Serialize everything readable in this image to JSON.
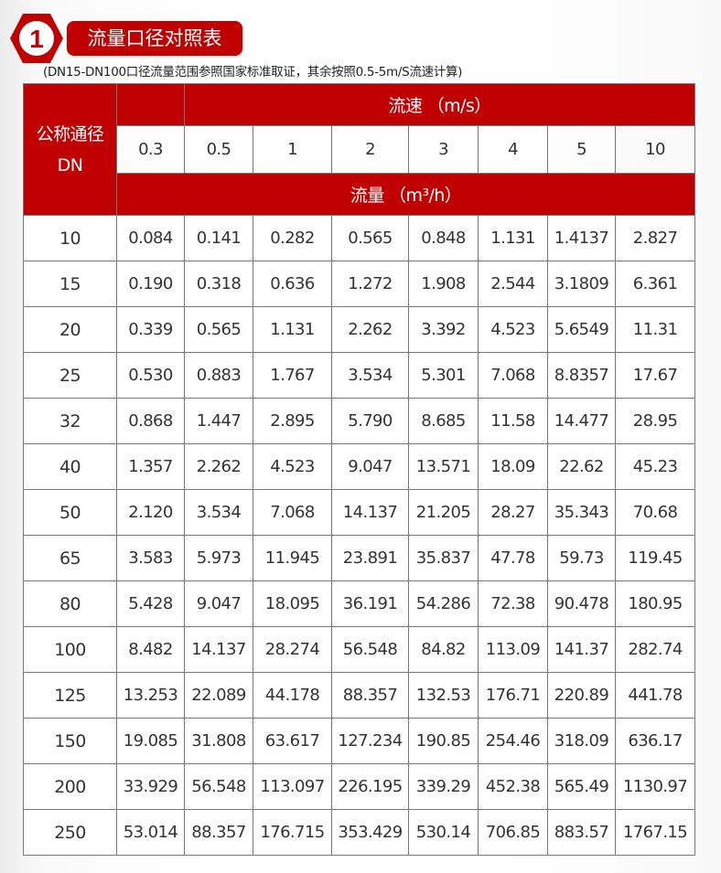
{
  "badge": {
    "number": "1"
  },
  "title": "流量口径对照表",
  "note": "(DN15-DN100口径流量范围参照国家标准取证，其余按照0.5-5m/S流速计算)",
  "colors": {
    "accent": "#c00000"
  },
  "table": {
    "dn_header_line1": "公称通径",
    "dn_header_line2": "DN",
    "velocity_header": "流速 （m/s）",
    "flow_header": "流量 （m³/h）",
    "velocities": [
      "0.3",
      "0.5",
      "1",
      "2",
      "3",
      "4",
      "5",
      "10"
    ],
    "rows": [
      {
        "dn": "10",
        "values": [
          "0.084",
          "0.141",
          "0.282",
          "0.565",
          "0.848",
          "1.131",
          "1.4137",
          "2.827"
        ]
      },
      {
        "dn": "15",
        "values": [
          "0.190",
          "0.318",
          "0.636",
          "1.272",
          "1.908",
          "2.544",
          "3.1809",
          "6.361"
        ]
      },
      {
        "dn": "20",
        "values": [
          "0.339",
          "0.565",
          "1.131",
          "2.262",
          "3.392",
          "4.523",
          "5.6549",
          "11.31"
        ]
      },
      {
        "dn": "25",
        "values": [
          "0.530",
          "0.883",
          "1.767",
          "3.534",
          "5.301",
          "7.068",
          "8.8357",
          "17.67"
        ]
      },
      {
        "dn": "32",
        "values": [
          "0.868",
          "1.447",
          "2.895",
          "5.790",
          "8.685",
          "11.58",
          "14.477",
          "28.95"
        ]
      },
      {
        "dn": "40",
        "values": [
          "1.357",
          "2.262",
          "4.523",
          "9.047",
          "13.571",
          "18.09",
          "22.62",
          "45.23"
        ]
      },
      {
        "dn": "50",
        "values": [
          "2.120",
          "3.534",
          "7.068",
          "14.137",
          "21.205",
          "28.27",
          "35.343",
          "70.68"
        ]
      },
      {
        "dn": "65",
        "values": [
          "3.583",
          "5.973",
          "11.945",
          "23.891",
          "35.837",
          "47.78",
          "59.73",
          "119.45"
        ]
      },
      {
        "dn": "80",
        "values": [
          "5.428",
          "9.047",
          "18.095",
          "36.191",
          "54.286",
          "72.38",
          "90.478",
          "180.95"
        ]
      },
      {
        "dn": "100",
        "values": [
          "8.482",
          "14.137",
          "28.274",
          "56.548",
          "84.82",
          "113.09",
          "141.37",
          "282.74"
        ]
      },
      {
        "dn": "125",
        "values": [
          "13.253",
          "22.089",
          "44.178",
          "88.357",
          "132.53",
          "176.71",
          "220.89",
          "441.78"
        ]
      },
      {
        "dn": "150",
        "values": [
          "19.085",
          "31.808",
          "63.617",
          "127.234",
          "190.85",
          "254.46",
          "318.09",
          "636.17"
        ]
      },
      {
        "dn": "200",
        "values": [
          "33.929",
          "56.548",
          "113.097",
          "226.195",
          "339.29",
          "452.38",
          "565.49",
          "1130.97"
        ]
      },
      {
        "dn": "250",
        "values": [
          "53.014",
          "88.357",
          "176.715",
          "353.429",
          "530.14",
          "706.85",
          "883.57",
          "1767.15"
        ]
      }
    ]
  }
}
